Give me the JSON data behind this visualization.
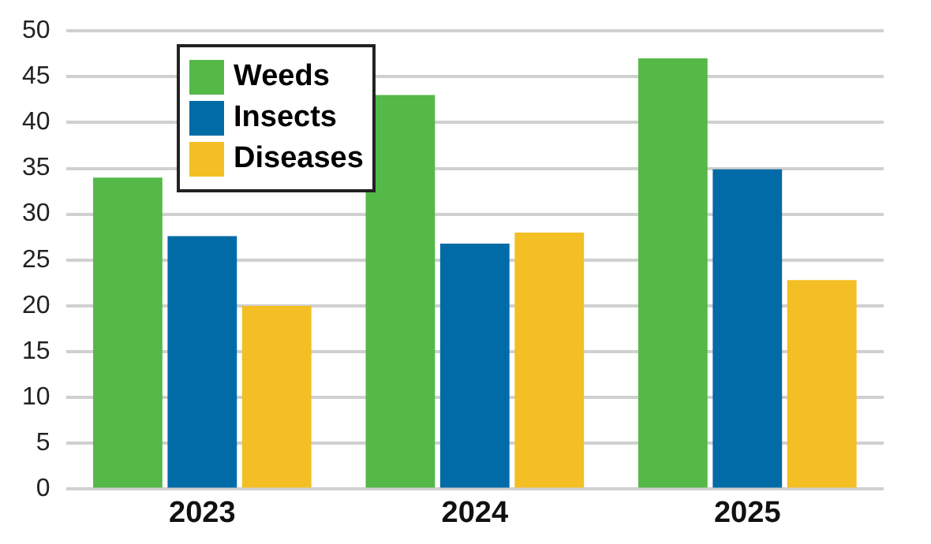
{
  "chart_data": {
    "type": "bar",
    "categories": [
      "2023",
      "2024",
      "2025"
    ],
    "series": [
      {
        "name": "Weeds",
        "color": "#55b948",
        "values": [
          34,
          43,
          47
        ]
      },
      {
        "name": "Insects",
        "color": "#006ba6",
        "values": [
          27.6,
          26.8,
          34.9
        ]
      },
      {
        "name": "Diseases",
        "color": "#f4bf24",
        "values": [
          20,
          28,
          22.8
        ]
      }
    ],
    "ylim": [
      0,
      50
    ],
    "yticks": [
      0,
      5,
      10,
      15,
      20,
      25,
      30,
      35,
      40,
      45,
      50
    ],
    "grid": "y",
    "legend": "top left"
  }
}
